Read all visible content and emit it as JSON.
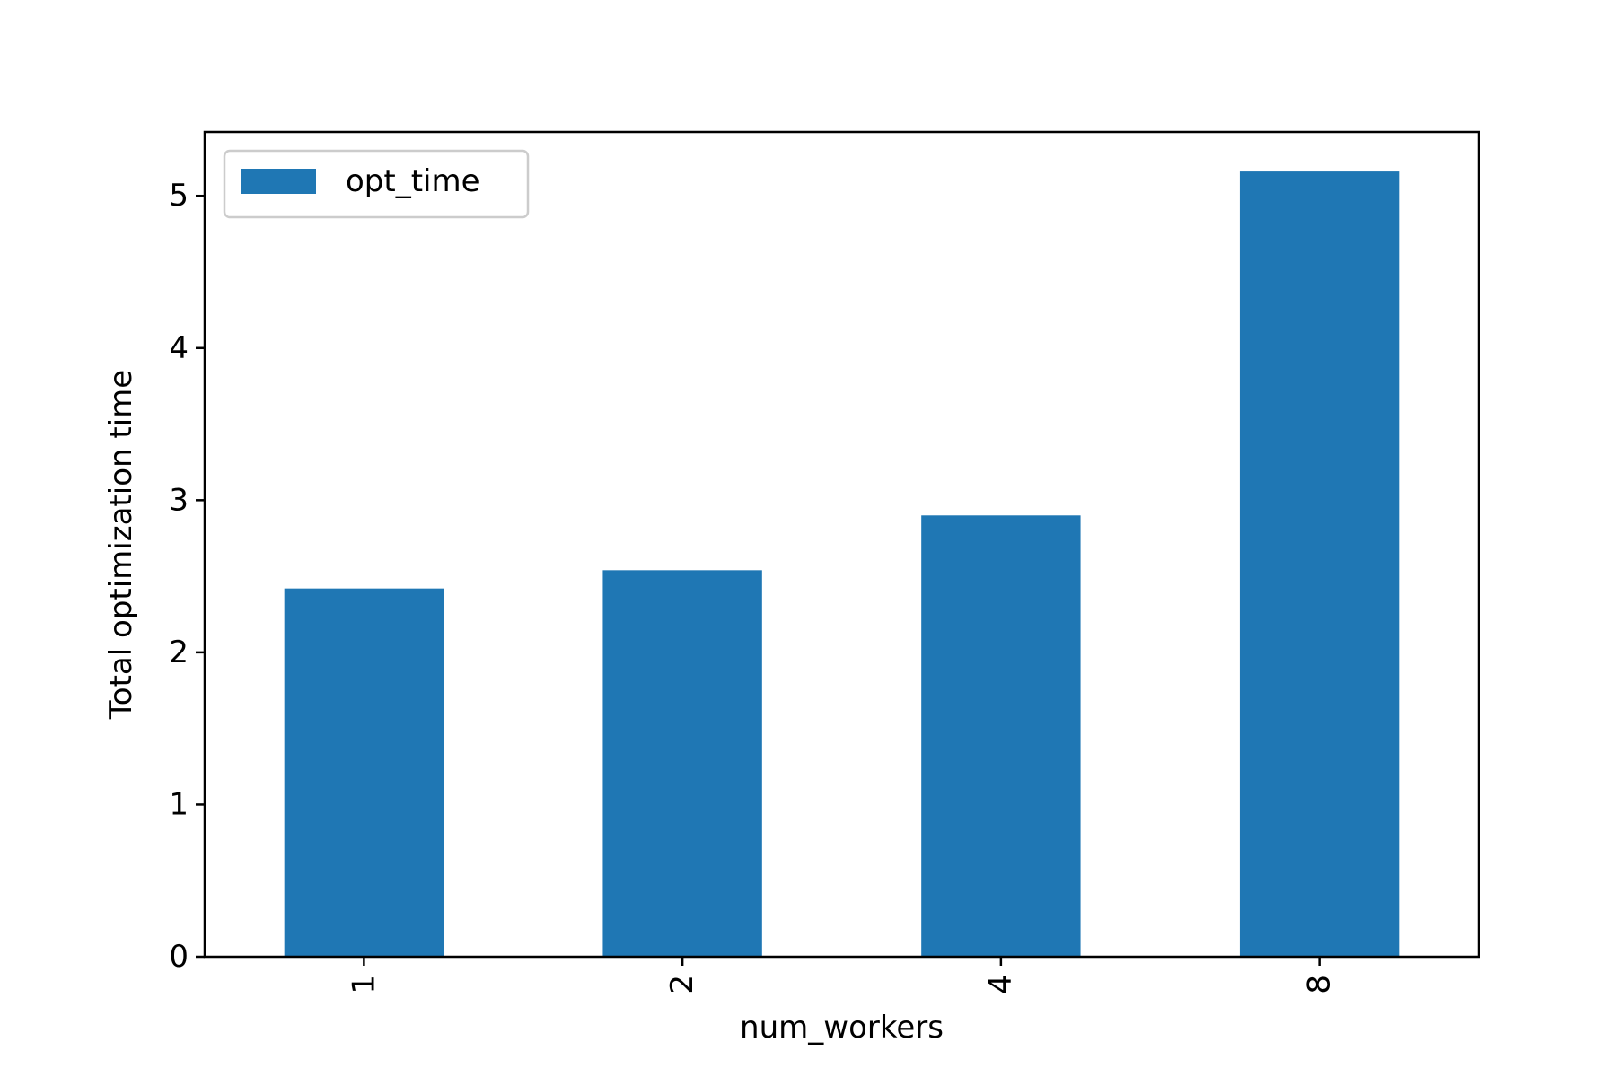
{
  "chart_data": {
    "type": "bar",
    "categories": [
      "1",
      "2",
      "4",
      "8"
    ],
    "series": [
      {
        "name": "opt_time",
        "values": [
          2.42,
          2.54,
          2.9,
          5.16
        ]
      }
    ],
    "xlabel": "num_workers",
    "ylabel": "Total optimization time",
    "ylim": [
      0,
      5.42
    ],
    "yticks": [
      0,
      1,
      2,
      3,
      4,
      5
    ],
    "xtick_rotation": 90,
    "grid": false,
    "legend": {
      "position": "top-left",
      "entries": [
        "opt_time"
      ]
    },
    "colors": {
      "bar": "#1f77b4",
      "axes": "#000000",
      "legend_border": "#cccccc"
    }
  }
}
